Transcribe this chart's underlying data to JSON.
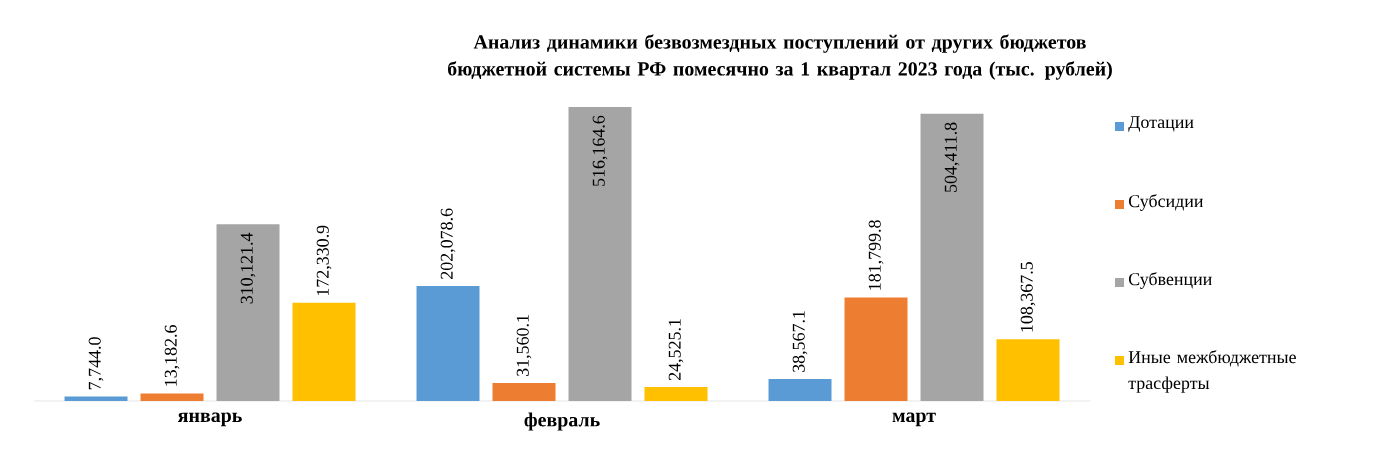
{
  "chart_data": {
    "type": "bar",
    "title": "Анализ динамики безвозмездных поступлений от других бюджетов бюджетной системы РФ помесячно за 1 квартал 2023 года (тыс. рублей)",
    "categories": [
      "январь",
      "февраль",
      "март"
    ],
    "legend": "right",
    "series": [
      {
        "name": "Дотации",
        "color": "#5b9bd5",
        "values": [
          7744.0,
          202078.6,
          38567.1
        ],
        "value_labels": [
          "7,744.0",
          "202,078.6",
          "38,567.1"
        ]
      },
      {
        "name": "Субсидии",
        "color": "#ed7d31",
        "values": [
          13182.6,
          31560.1,
          181799.8
        ],
        "value_labels": [
          "13,182.6",
          "31,560.1",
          "181,799.8"
        ]
      },
      {
        "name": "Субвенции",
        "color": "#a5a5a5",
        "values": [
          310121.4,
          516164.6,
          504411.8
        ],
        "value_labels": [
          "310,121.4",
          "516,164.6",
          "504,411.8"
        ]
      },
      {
        "name": "Иные межбюджетные трасферты",
        "color": "#ffc000",
        "values": [
          172330.9,
          24525.1,
          108367.5
        ],
        "value_labels": [
          "172,330.9",
          "24,525.1",
          "108,367.5"
        ]
      }
    ]
  }
}
